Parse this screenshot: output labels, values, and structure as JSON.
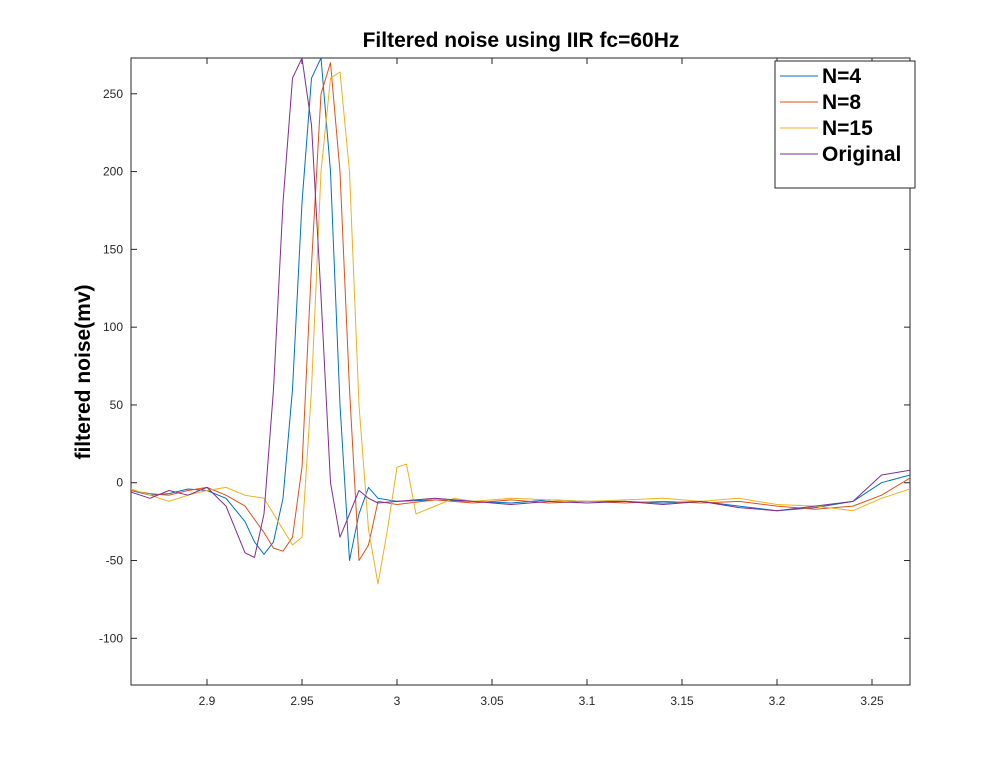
{
  "chart_data": {
    "type": "line",
    "title": "Filtered noise using IIR fc=60Hz",
    "xlabel": "",
    "ylabel": "filtered noise(mv)",
    "xlim": [
      2.86,
      3.27
    ],
    "ylim": [
      -130,
      273
    ],
    "xticks": [
      2.9,
      2.95,
      3.0,
      3.05,
      3.1,
      3.15,
      3.2,
      3.25
    ],
    "xtick_labels": [
      "2.9",
      "2.95",
      "3",
      "3.05",
      "3.1",
      "3.15",
      "3.2",
      "3.25"
    ],
    "yticks": [
      -100,
      -50,
      0,
      50,
      100,
      150,
      200,
      250
    ],
    "ytick_labels": [
      "-100",
      "-50",
      "0",
      "50",
      "100",
      "150",
      "200",
      "250"
    ],
    "grid": false,
    "legend_position": "top-right",
    "series": [
      {
        "name": "N=4",
        "color": "#0072BD",
        "x": [
          2.86,
          2.87,
          2.88,
          2.89,
          2.9,
          2.91,
          2.92,
          2.925,
          2.93,
          2.935,
          2.94,
          2.945,
          2.95,
          2.955,
          2.96,
          2.965,
          2.97,
          2.975,
          2.98,
          2.985,
          2.99,
          3.0,
          3.02,
          3.04,
          3.06,
          3.08,
          3.1,
          3.12,
          3.14,
          3.16,
          3.18,
          3.2,
          3.22,
          3.24,
          3.255,
          3.27
        ],
        "y": [
          -5,
          -8,
          -7,
          -4,
          -5,
          -10,
          -25,
          -38,
          -46,
          -38,
          -10,
          60,
          180,
          260,
          273,
          200,
          50,
          -50,
          -20,
          -3,
          -10,
          -12,
          -11,
          -12,
          -13,
          -11,
          -12,
          -12,
          -13,
          -12,
          -15,
          -18,
          -16,
          -12,
          0,
          5
        ]
      },
      {
        "name": "N=8",
        "color": "#D95319",
        "x": [
          2.86,
          2.87,
          2.88,
          2.89,
          2.9,
          2.91,
          2.92,
          2.93,
          2.935,
          2.94,
          2.945,
          2.95,
          2.955,
          2.96,
          2.965,
          2.97,
          2.975,
          2.98,
          2.985,
          2.99,
          3.0,
          3.02,
          3.04,
          3.06,
          3.08,
          3.1,
          3.12,
          3.14,
          3.16,
          3.18,
          3.2,
          3.22,
          3.24,
          3.255,
          3.27
        ],
        "y": [
          -5,
          -7,
          -8,
          -5,
          -3,
          -8,
          -15,
          -32,
          -42,
          -44,
          -35,
          10,
          140,
          250,
          270,
          200,
          60,
          -50,
          -40,
          -12,
          -14,
          -11,
          -13,
          -11,
          -13,
          -12,
          -13,
          -12,
          -13,
          -12,
          -15,
          -17,
          -15,
          -8,
          3
        ]
      },
      {
        "name": "N=15",
        "color": "#EDB120",
        "x": [
          2.86,
          2.87,
          2.88,
          2.89,
          2.9,
          2.91,
          2.92,
          2.93,
          2.94,
          2.945,
          2.95,
          2.955,
          2.96,
          2.965,
          2.97,
          2.975,
          2.98,
          2.985,
          2.99,
          2.995,
          3.0,
          3.005,
          3.01,
          3.02,
          3.03,
          3.04,
          3.06,
          3.08,
          3.1,
          3.12,
          3.14,
          3.16,
          3.18,
          3.2,
          3.22,
          3.24,
          3.255,
          3.27
        ],
        "y": [
          -4,
          -8,
          -12,
          -8,
          -5,
          -3,
          -8,
          -10,
          -30,
          -40,
          -35,
          60,
          200,
          260,
          264,
          200,
          50,
          -30,
          -65,
          -30,
          10,
          12,
          -20,
          -15,
          -10,
          -12,
          -10,
          -11,
          -12,
          -11,
          -10,
          -12,
          -10,
          -14,
          -15,
          -18,
          -10,
          -4
        ]
      },
      {
        "name": "Original",
        "color": "#7E2F8E",
        "x": [
          2.86,
          2.87,
          2.88,
          2.89,
          2.9,
          2.91,
          2.915,
          2.92,
          2.925,
          2.93,
          2.935,
          2.94,
          2.945,
          2.95,
          2.955,
          2.96,
          2.965,
          2.97,
          2.975,
          2.98,
          2.985,
          2.99,
          3.0,
          3.02,
          3.04,
          3.06,
          3.08,
          3.1,
          3.12,
          3.14,
          3.16,
          3.18,
          3.2,
          3.22,
          3.24,
          3.255,
          3.27
        ],
        "y": [
          -6,
          -10,
          -5,
          -8,
          -3,
          -15,
          -30,
          -45,
          -48,
          -20,
          60,
          180,
          260,
          273,
          230,
          120,
          0,
          -35,
          -20,
          -5,
          -10,
          -13,
          -12,
          -10,
          -12,
          -14,
          -12,
          -13,
          -12,
          -14,
          -12,
          -16,
          -18,
          -15,
          -12,
          5,
          8
        ]
      }
    ]
  }
}
